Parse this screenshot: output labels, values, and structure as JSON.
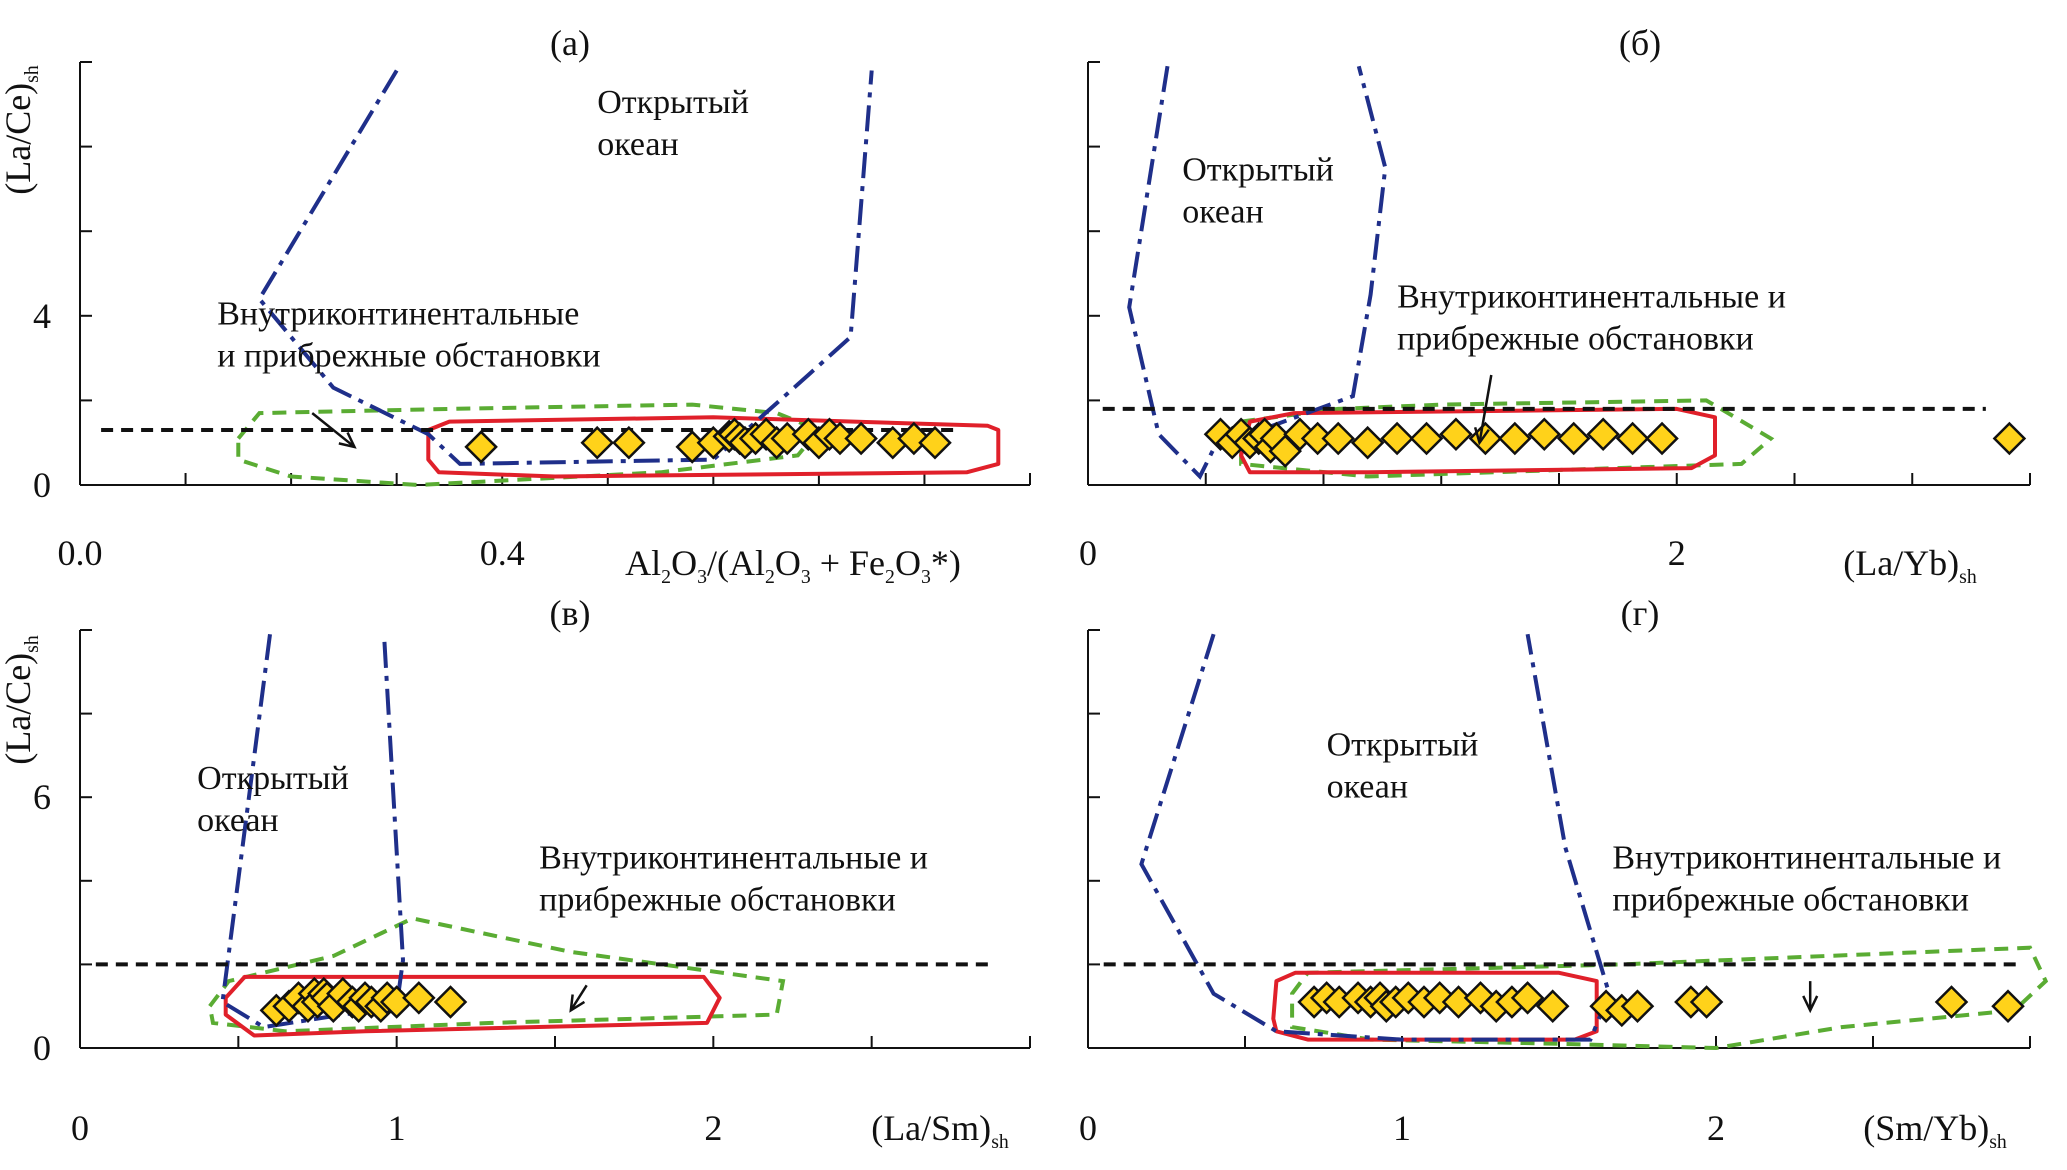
{
  "colors": {
    "axis": "#111111",
    "ocean_line": "#1f2f8a",
    "red_outline": "#e0202a",
    "green_outline": "#5aac33",
    "threshold": "#111111",
    "marker_fill": "#ffd21a",
    "marker_stroke": "#111111"
  },
  "icons": {
    "marker": "diamond-marker",
    "arrow": "arrow-pointer"
  },
  "chart_data": [
    {
      "type": "scatter",
      "panel_label": "(а)",
      "xlabel": {
        "base": "Al",
        "parts": [
          {
            "t": "Al"
          },
          {
            "t": "2",
            "sub": true
          },
          {
            "t": "O"
          },
          {
            "t": "3",
            "sub": true
          },
          {
            "t": "/(Al"
          },
          {
            "t": "2",
            "sub": true
          },
          {
            "t": "O"
          },
          {
            "t": "3",
            "sub": true
          },
          {
            "t": " + Fe"
          },
          {
            "t": "2",
            "sub": true
          },
          {
            "t": "O"
          },
          {
            "t": "3",
            "sub": true
          },
          {
            "t": "*)"
          }
        ]
      },
      "ylabel": {
        "parts": [
          {
            "t": "(La/Ce)"
          },
          {
            "t": "sh",
            "sub": true
          }
        ]
      },
      "xlim": [
        0,
        0.9
      ],
      "ylim": [
        0,
        10
      ],
      "x_ticks": [
        0.0,
        0.4
      ],
      "x_tick_labels": [
        "0.0",
        "0.4"
      ],
      "x_minor_ticks": [
        0.1,
        0.2,
        0.3,
        0.4,
        0.5,
        0.6,
        0.7,
        0.8,
        0.9
      ],
      "y_ticks": [
        0,
        4
      ],
      "y_tick_labels": [
        "0",
        "4"
      ],
      "y_minor_ticks": [
        0,
        2,
        4,
        6,
        8,
        10
      ],
      "threshold_y": 1.3,
      "threshold_x": [
        0.02,
        0.83
      ],
      "ocean_label": [
        "Открытый",
        "океан"
      ],
      "ocean_label_pos": [
        0.49,
        8.8
      ],
      "coastal_label": [
        "Внутриконтинентальные",
        "и прибрежные обстановки"
      ],
      "coastal_label_pos": [
        0.13,
        3.8
      ],
      "arrow": [
        [
          0.22,
          1.7
        ],
        [
          0.26,
          0.9
        ]
      ],
      "ocean_curve": [
        [
          0.3,
          9.8
        ],
        [
          0.17,
          4.4
        ],
        [
          0.24,
          2.3
        ],
        [
          0.33,
          1.2
        ],
        [
          0.36,
          0.5
        ],
        [
          0.6,
          0.6
        ],
        [
          0.69,
          2.6
        ],
        [
          0.73,
          3.5
        ],
        [
          0.75,
          9.8
        ]
      ],
      "red_polygon": [
        [
          0.33,
          1.3
        ],
        [
          0.35,
          1.5
        ],
        [
          0.6,
          1.6
        ],
        [
          0.86,
          1.4
        ],
        [
          0.87,
          1.3
        ],
        [
          0.87,
          0.5
        ],
        [
          0.84,
          0.3
        ],
        [
          0.45,
          0.2
        ],
        [
          0.34,
          0.3
        ],
        [
          0.33,
          0.6
        ]
      ],
      "green_polygon": [
        [
          0.15,
          1.1
        ],
        [
          0.17,
          1.7
        ],
        [
          0.35,
          1.8
        ],
        [
          0.58,
          1.9
        ],
        [
          0.66,
          1.7
        ],
        [
          0.7,
          1.3
        ],
        [
          0.68,
          0.7
        ],
        [
          0.55,
          0.3
        ],
        [
          0.32,
          0.0
        ],
        [
          0.2,
          0.2
        ],
        [
          0.15,
          0.6
        ]
      ],
      "points": [
        [
          0.38,
          0.9
        ],
        [
          0.49,
          1.0
        ],
        [
          0.52,
          1.0
        ],
        [
          0.58,
          0.9
        ],
        [
          0.6,
          1.0
        ],
        [
          0.615,
          1.15
        ],
        [
          0.62,
          1.2
        ],
        [
          0.625,
          1.1
        ],
        [
          0.63,
          1.0
        ],
        [
          0.64,
          1.1
        ],
        [
          0.65,
          1.2
        ],
        [
          0.66,
          1.0
        ],
        [
          0.67,
          1.1
        ],
        [
          0.69,
          1.2
        ],
        [
          0.7,
          1.0
        ],
        [
          0.71,
          1.2
        ],
        [
          0.72,
          1.1
        ],
        [
          0.74,
          1.1
        ],
        [
          0.77,
          1.0
        ],
        [
          0.79,
          1.1
        ],
        [
          0.81,
          1.0
        ]
      ]
    },
    {
      "type": "scatter",
      "panel_label": "(б)",
      "xlabel": {
        "parts": [
          {
            "t": "(La/Yb)"
          },
          {
            "t": "sh",
            "sub": true
          }
        ]
      },
      "ylabel": null,
      "xlim": [
        0,
        3.2
      ],
      "ylim": [
        0,
        10
      ],
      "x_ticks": [
        0,
        2
      ],
      "x_tick_labels": [
        "0",
        "2"
      ],
      "x_minor_ticks": [
        0.4,
        0.8,
        1.2,
        1.6,
        2.0,
        2.4,
        2.8,
        3.2
      ],
      "y_ticks": [],
      "y_tick_labels": [],
      "y_minor_ticks": [
        0,
        2,
        4,
        6,
        8,
        10
      ],
      "threshold_y": 1.8,
      "threshold_x": [
        0.05,
        3.05
      ],
      "ocean_label": [
        "Открытый",
        "океан"
      ],
      "ocean_label_pos": [
        0.32,
        7.2
      ],
      "coastal_label": [
        "Внутриконтинентальные и",
        "прибрежные обстановки"
      ],
      "coastal_label_pos": [
        1.05,
        4.2
      ],
      "arrow": [
        [
          1.37,
          2.6
        ],
        [
          1.33,
          1.0
        ]
      ],
      "ocean_curve": [
        [
          0.27,
          9.9
        ],
        [
          0.14,
          4.2
        ],
        [
          0.24,
          1.2
        ],
        [
          0.38,
          0.2
        ],
        [
          0.43,
          0.9
        ],
        [
          0.9,
          2.1
        ],
        [
          0.96,
          4.5
        ],
        [
          1.01,
          7.5
        ],
        [
          0.92,
          9.9
        ]
      ],
      "red_polygon": [
        [
          0.52,
          0.7
        ],
        [
          0.55,
          1.5
        ],
        [
          0.7,
          1.7
        ],
        [
          2.0,
          1.8
        ],
        [
          2.13,
          1.6
        ],
        [
          2.13,
          0.7
        ],
        [
          2.05,
          0.4
        ],
        [
          0.95,
          0.3
        ],
        [
          0.55,
          0.3
        ]
      ],
      "green_polygon": [
        [
          0.52,
          1.5
        ],
        [
          0.85,
          1.8
        ],
        [
          1.2,
          1.9
        ],
        [
          2.1,
          2.0
        ],
        [
          2.15,
          1.8
        ],
        [
          2.32,
          1.1
        ],
        [
          2.22,
          0.5
        ],
        [
          0.95,
          0.2
        ],
        [
          0.52,
          0.5
        ]
      ],
      "points": [
        [
          0.45,
          1.2
        ],
        [
          0.49,
          1.0
        ],
        [
          0.52,
          1.2
        ],
        [
          0.55,
          1.0
        ],
        [
          0.58,
          1.1
        ],
        [
          0.6,
          1.2
        ],
        [
          0.62,
          0.9
        ],
        [
          0.64,
          1.1
        ],
        [
          0.67,
          0.8
        ],
        [
          0.72,
          1.2
        ],
        [
          0.78,
          1.1
        ],
        [
          0.85,
          1.1
        ],
        [
          0.95,
          1.0
        ],
        [
          1.05,
          1.1
        ],
        [
          1.15,
          1.1
        ],
        [
          1.25,
          1.2
        ],
        [
          1.35,
          1.1
        ],
        [
          1.45,
          1.1
        ],
        [
          1.55,
          1.2
        ],
        [
          1.65,
          1.1
        ],
        [
          1.75,
          1.2
        ],
        [
          1.85,
          1.1
        ],
        [
          1.95,
          1.1
        ],
        [
          3.13,
          1.1
        ]
      ]
    },
    {
      "type": "scatter",
      "panel_label": "(в)",
      "xlabel": {
        "parts": [
          {
            "t": "(La/Sm)"
          },
          {
            "t": "sh",
            "sub": true
          }
        ]
      },
      "ylabel": {
        "parts": [
          {
            "t": "(La/Ce)"
          },
          {
            "t": "sh",
            "sub": true
          }
        ]
      },
      "xlim": [
        0,
        3
      ],
      "ylim": [
        0,
        10
      ],
      "x_ticks": [
        0,
        1,
        2
      ],
      "x_tick_labels": [
        "0",
        "1",
        "2"
      ],
      "x_minor_ticks": [
        0.5,
        1.0,
        1.5,
        2.0,
        2.5,
        3.0
      ],
      "y_ticks": [
        0,
        6
      ],
      "y_tick_labels": [
        "0",
        "6"
      ],
      "y_minor_ticks": [
        0,
        2,
        4,
        6,
        8,
        10
      ],
      "threshold_y": 2.0,
      "threshold_x": [
        0.05,
        2.88
      ],
      "ocean_label": [
        "Открытый",
        "океан"
      ],
      "ocean_label_pos": [
        0.37,
        6.2
      ],
      "coastal_label": [
        "Внутриконтинентальные и",
        "прибрежные обстановки"
      ],
      "coastal_label_pos": [
        1.45,
        4.3
      ],
      "arrow": [
        [
          1.6,
          1.5
        ],
        [
          1.55,
          0.9
        ]
      ],
      "ocean_curve": [
        [
          0.6,
          9.9
        ],
        [
          0.45,
          1.1
        ],
        [
          0.58,
          0.5
        ],
        [
          1.0,
          1.0
        ],
        [
          1.02,
          2.1
        ],
        [
          0.96,
          9.9
        ]
      ],
      "red_polygon": [
        [
          0.46,
          1.2
        ],
        [
          0.52,
          1.7
        ],
        [
          0.8,
          1.7
        ],
        [
          1.5,
          1.7
        ],
        [
          1.97,
          1.7
        ],
        [
          2.02,
          1.2
        ],
        [
          1.98,
          0.6
        ],
        [
          0.9,
          0.4
        ],
        [
          0.55,
          0.3
        ],
        [
          0.46,
          0.8
        ]
      ],
      "green_polygon": [
        [
          0.41,
          1.0
        ],
        [
          0.47,
          1.6
        ],
        [
          0.8,
          2.2
        ],
        [
          1.05,
          3.1
        ],
        [
          1.55,
          2.3
        ],
        [
          2.22,
          1.6
        ],
        [
          2.2,
          0.8
        ],
        [
          1.3,
          0.6
        ],
        [
          0.65,
          0.4
        ],
        [
          0.42,
          0.6
        ]
      ],
      "points": [
        [
          0.62,
          0.9
        ],
        [
          0.66,
          1.0
        ],
        [
          0.69,
          1.2
        ],
        [
          0.72,
          1.0
        ],
        [
          0.74,
          1.3
        ],
        [
          0.75,
          1.1
        ],
        [
          0.77,
          1.3
        ],
        [
          0.78,
          1.2
        ],
        [
          0.8,
          1.0
        ],
        [
          0.83,
          1.3
        ],
        [
          0.86,
          1.1
        ],
        [
          0.88,
          1.0
        ],
        [
          0.9,
          1.2
        ],
        [
          0.92,
          1.1
        ],
        [
          0.95,
          1.0
        ],
        [
          0.97,
          1.2
        ],
        [
          1.0,
          1.1
        ],
        [
          1.07,
          1.2
        ],
        [
          1.17,
          1.1
        ]
      ]
    },
    {
      "type": "scatter",
      "panel_label": "(г)",
      "xlabel": {
        "parts": [
          {
            "t": "(Sm/Yb)"
          },
          {
            "t": "sh",
            "sub": true
          }
        ]
      },
      "ylabel": null,
      "xlim": [
        0,
        3
      ],
      "ylim": [
        0,
        10
      ],
      "x_ticks": [
        0,
        1,
        2
      ],
      "x_tick_labels": [
        "0",
        "1",
        "2"
      ],
      "x_minor_ticks": [
        0.5,
        1.0,
        1.5,
        2.0,
        2.5,
        3.0
      ],
      "y_ticks": [],
      "y_tick_labels": [],
      "y_minor_ticks": [
        0,
        2,
        4,
        6,
        8,
        10
      ],
      "threshold_y": 2.0,
      "threshold_x": [
        0.05,
        2.97
      ],
      "ocean_label": [
        "Открытый",
        "океан"
      ],
      "ocean_label_pos": [
        0.76,
        7.0
      ],
      "coastal_label": [
        "Внутриконтинентальные и",
        "прибрежные обстановки"
      ],
      "coastal_label_pos": [
        1.67,
        4.3
      ],
      "arrow": [
        [
          2.3,
          1.6
        ],
        [
          2.3,
          0.9
        ]
      ],
      "ocean_curve": [
        [
          0.4,
          9.9
        ],
        [
          0.17,
          4.4
        ],
        [
          0.4,
          1.3
        ],
        [
          0.6,
          0.4
        ],
        [
          1.0,
          0.2
        ],
        [
          1.6,
          0.2
        ],
        [
          1.66,
          1.3
        ],
        [
          1.52,
          4.8
        ],
        [
          1.4,
          9.9
        ]
      ],
      "red_polygon": [
        [
          0.59,
          0.7
        ],
        [
          0.6,
          1.6
        ],
        [
          0.66,
          1.8
        ],
        [
          1.5,
          1.8
        ],
        [
          1.62,
          1.6
        ],
        [
          1.62,
          0.4
        ],
        [
          1.55,
          0.2
        ],
        [
          0.7,
          0.2
        ],
        [
          0.6,
          0.4
        ]
      ],
      "green_polygon": [
        [
          0.65,
          1.3
        ],
        [
          0.7,
          1.8
        ],
        [
          1.7,
          2.0
        ],
        [
          2.35,
          2.2
        ],
        [
          3.0,
          2.4
        ],
        [
          3.05,
          1.6
        ],
        [
          2.95,
          0.9
        ],
        [
          2.4,
          0.5
        ],
        [
          2.0,
          0.0
        ],
        [
          1.5,
          0.1
        ],
        [
          0.9,
          0.2
        ],
        [
          0.65,
          0.5
        ]
      ],
      "points": [
        [
          0.72,
          1.1
        ],
        [
          0.76,
          1.2
        ],
        [
          0.8,
          1.1
        ],
        [
          0.86,
          1.2
        ],
        [
          0.9,
          1.1
        ],
        [
          0.93,
          1.2
        ],
        [
          0.95,
          1.0
        ],
        [
          0.98,
          1.1
        ],
        [
          1.02,
          1.2
        ],
        [
          1.07,
          1.1
        ],
        [
          1.12,
          1.2
        ],
        [
          1.18,
          1.1
        ],
        [
          1.25,
          1.2
        ],
        [
          1.3,
          1.0
        ],
        [
          1.35,
          1.1
        ],
        [
          1.4,
          1.2
        ],
        [
          1.48,
          1.0
        ],
        [
          1.65,
          1.0
        ],
        [
          1.7,
          0.9
        ],
        [
          1.75,
          1.0
        ],
        [
          1.92,
          1.1
        ],
        [
          1.97,
          1.1
        ],
        [
          2.75,
          1.1
        ],
        [
          2.93,
          1.0
        ]
      ]
    }
  ]
}
